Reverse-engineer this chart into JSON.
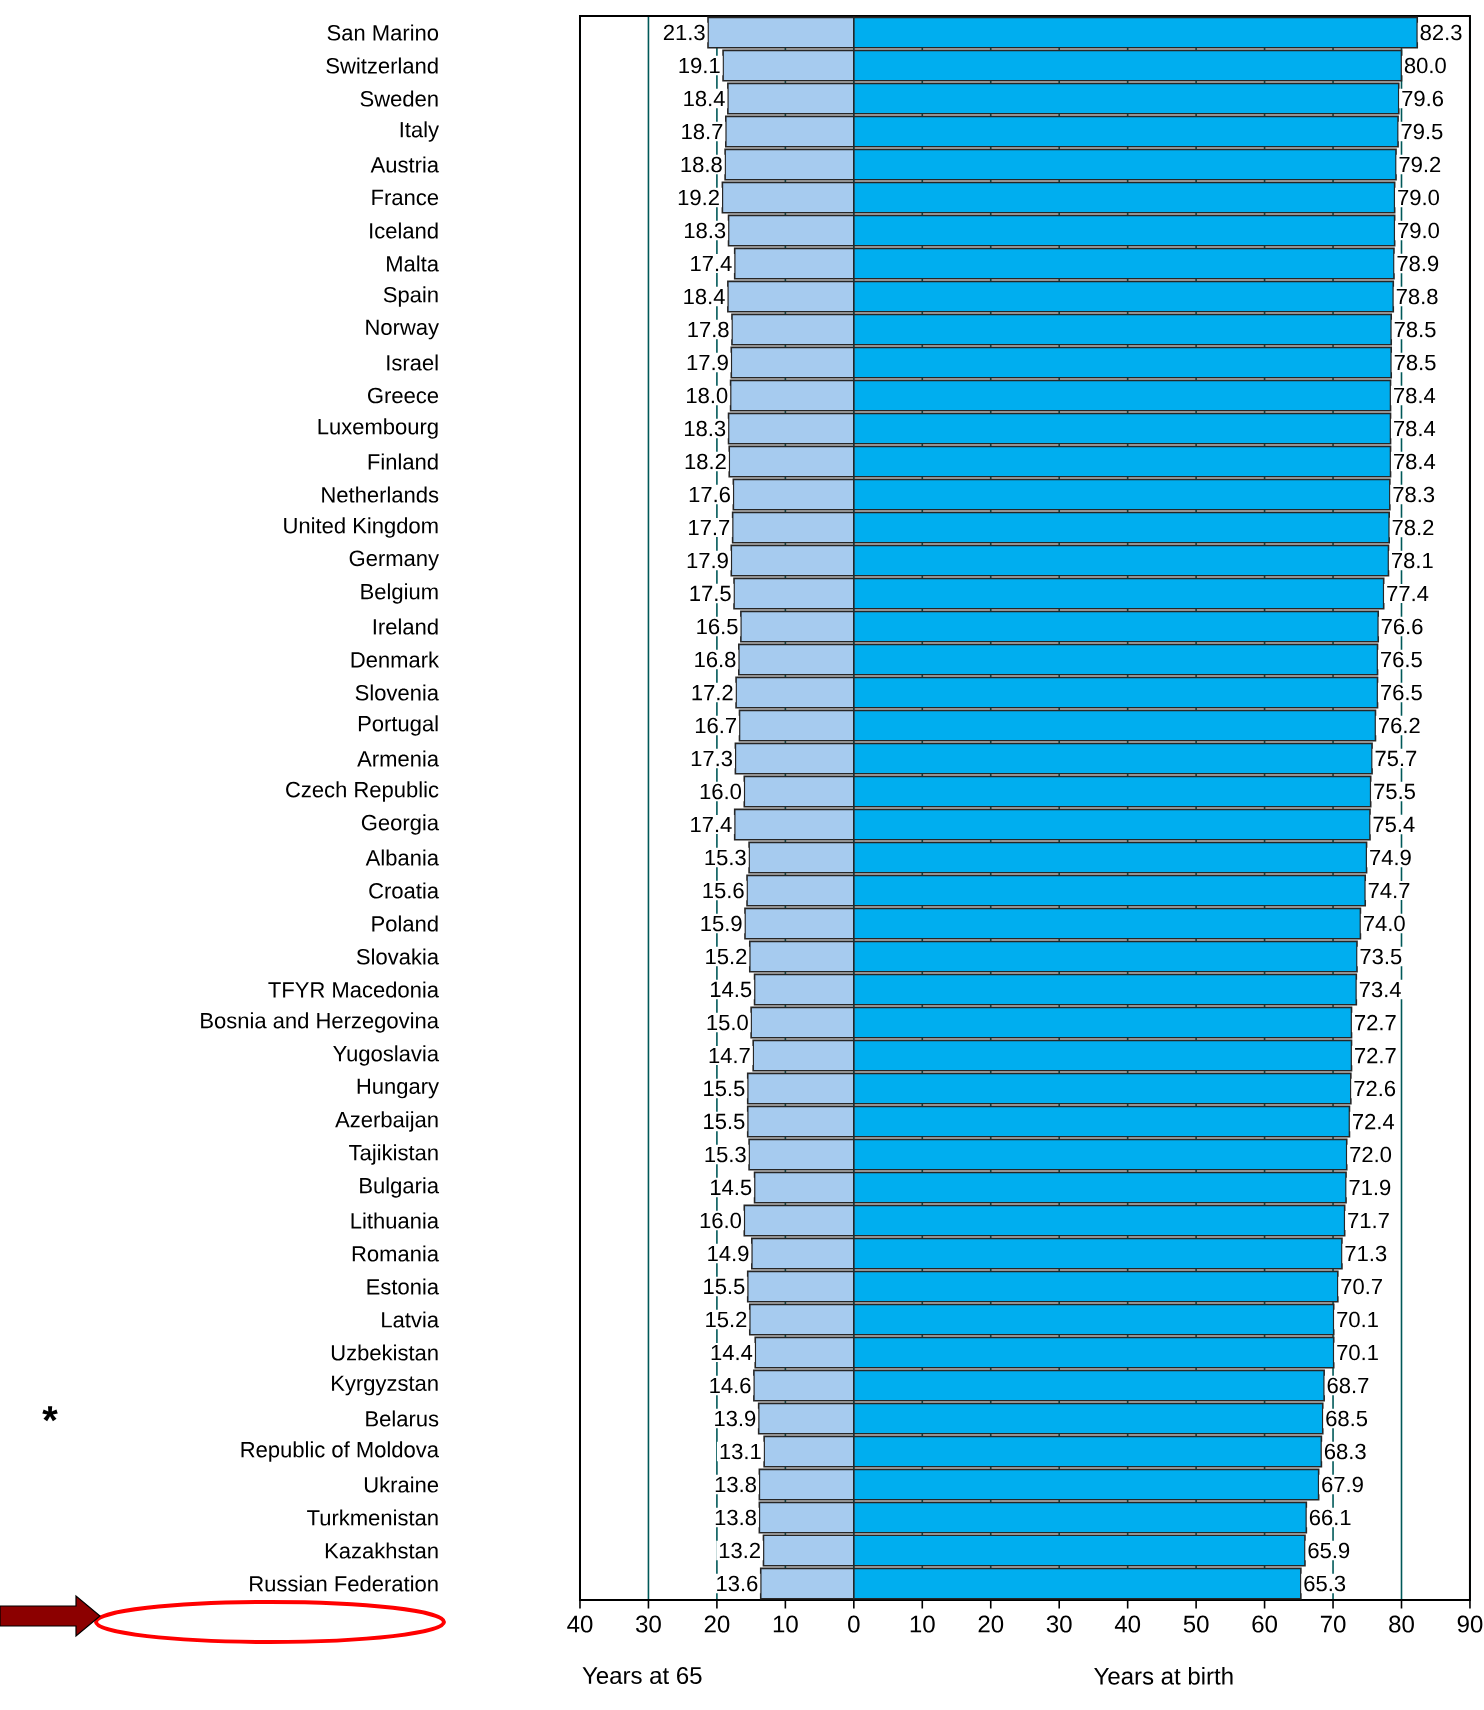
{
  "chart_data": {
    "type": "bar",
    "orientation": "horizontal",
    "categories": [
      "San Marino",
      "Switzerland",
      "Sweden",
      "Italy",
      "Austria",
      "France",
      "Iceland",
      "Malta",
      "Spain",
      "Norway",
      "Israel",
      "Greece",
      "Luxembourg",
      "Finland",
      "Netherlands",
      "United Kingdom",
      "Germany",
      "Belgium",
      "Ireland",
      "Denmark",
      "Slovenia",
      "Portugal",
      "Armenia",
      "Czech Republic",
      "Georgia",
      "Albania",
      "Croatia",
      "Poland",
      "Slovakia",
      "TFYR Macedonia",
      "Bosnia and Herzegovina",
      "Yugoslavia",
      "Hungary",
      "Azerbaijan",
      "Tajikistan",
      "Bulgaria",
      "Lithuania",
      "Romania",
      "Estonia",
      "Latvia",
      "Uzbekistan",
      "Kyrgyzstan",
      "Belarus",
      "Republic of Moldova",
      "Ukraine",
      "Turkmenistan",
      "Kazakhstan",
      "Russian Federation"
    ],
    "series": [
      {
        "color": "#a6cbef",
        "values": [
          21.3,
          19.1,
          18.4,
          18.7,
          18.8,
          19.2,
          18.3,
          17.4,
          18.4,
          17.8,
          17.9,
          18.0,
          18.3,
          18.2,
          17.6,
          17.7,
          17.9,
          17.5,
          16.5,
          16.8,
          17.2,
          16.7,
          17.3,
          16.0,
          17.4,
          15.3,
          15.6,
          15.9,
          15.2,
          14.5,
          15.0,
          14.7,
          15.5,
          15.5,
          15.3,
          14.5,
          16.0,
          14.9,
          15.5,
          15.2,
          14.4,
          14.6,
          13.9,
          13.1,
          13.8,
          13.8,
          13.2,
          13.6
        ],
        "base": [
          -21.3,
          -19.1,
          -18.4,
          -18.7,
          -18.8,
          -19.2,
          -18.3,
          -17.4,
          -18.4,
          -17.8,
          -17.9,
          -18.0,
          -18.3,
          -18.2,
          -17.6,
          -17.7,
          -17.9,
          -17.5,
          -16.5,
          -16.8,
          -17.2,
          -16.7,
          -17.3,
          -16.0,
          -17.4,
          -15.3,
          -15.6,
          -15.9,
          -15.2,
          -14.5,
          -15.0,
          -14.7,
          -15.5,
          -15.5,
          -15.3,
          -14.5,
          -16.0,
          -14.9,
          -15.5,
          -15.2,
          -14.4,
          -14.6,
          -13.9,
          -13.1,
          -13.8,
          -13.8,
          -13.2,
          -13.6
        ],
        "value_labels": [
          "21.3",
          "19.1",
          "18.4",
          "18.7",
          "18.8",
          "19.2",
          "18.3",
          "17.4",
          "18.4",
          "17.8",
          "17.9",
          "18.0",
          "18.3",
          "18.2",
          "17.6",
          "17.7",
          "17.9",
          "17.5",
          "16.5",
          "16.8",
          "17.2",
          "16.7",
          "17.3",
          "16.0",
          "17.4",
          "15.3",
          "15.6",
          "15.9",
          "15.2",
          "14.5",
          "15.0",
          "14.7",
          "15.5",
          "15.5",
          "15.3",
          "14.5",
          "16.0",
          "14.9",
          "15.5",
          "15.2",
          "14.4",
          "14.6",
          "13.9",
          "13.1",
          "13.8",
          "13.8",
          "13.2",
          "13.6"
        ]
      },
      {
        "color": "#00aeef",
        "values": [
          82.3,
          80.0,
          79.6,
          79.5,
          79.2,
          79.0,
          79.0,
          78.9,
          78.8,
          78.5,
          78.5,
          78.4,
          78.4,
          78.4,
          78.3,
          78.2,
          78.1,
          77.4,
          76.6,
          76.5,
          76.5,
          76.2,
          75.7,
          75.5,
          75.4,
          74.9,
          74.7,
          74.0,
          73.5,
          73.4,
          72.7,
          72.7,
          72.6,
          72.4,
          72.0,
          71.9,
          71.7,
          71.3,
          70.7,
          70.1,
          70.1,
          68.7,
          68.5,
          68.3,
          67.9,
          66.1,
          65.9,
          65.3
        ],
        "value_labels": [
          "82.3",
          "80.0",
          "79.6",
          "79.5",
          "79.2",
          "79.0",
          "79.0",
          "78.9",
          "78.8",
          "78.5",
          "78.5",
          "78.4",
          "78.4",
          "78.4",
          "78.3",
          "78.2",
          "78.1",
          "77.4",
          "76.6",
          "76.5",
          "76.5",
          "76.2",
          "75.7",
          "75.5",
          "75.4",
          "74.9",
          "74.7",
          "74.0",
          "73.5",
          "73.4",
          "72.7",
          "72.7",
          "72.6",
          "72.4",
          "72.0",
          "71.9",
          "71.7",
          "71.3",
          "70.7",
          "70.1",
          "70.1",
          "68.7",
          "68.5",
          "68.3",
          "67.9",
          "66.1",
          "65.9",
          "65.3"
        ]
      }
    ],
    "xlim": [
      -40,
      90
    ],
    "xticks": [
      {
        "value": -40,
        "label": "40"
      },
      {
        "value": -30,
        "label": "30"
      },
      {
        "value": -20,
        "label": "20"
      },
      {
        "value": -10,
        "label": "10"
      },
      0,
      10,
      20,
      30,
      40,
      50,
      60,
      70,
      80,
      90
    ],
    "xlabel": "Years at birth",
    "annotations": [
      "Years at 65",
      "*"
    ],
    "grid": "x"
  }
}
